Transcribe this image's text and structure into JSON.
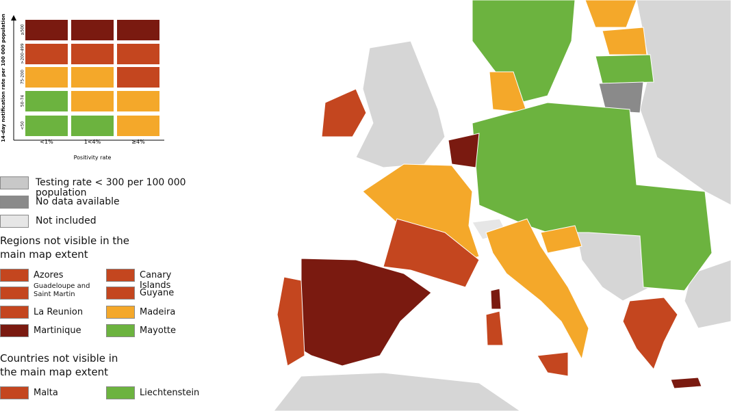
{
  "matrix": {
    "y_axis_label": "14-day notification rate per 100 000 population",
    "x_axis_label": "Positivity rate",
    "row_labels": [
      "≥500",
      ">200-499",
      "75-200",
      "50-74",
      "<50"
    ],
    "column_labels": [
      "<1%",
      "1<4%",
      "≥4%"
    ],
    "cells": [
      [
        "#7a1a10",
        "#7a1a10",
        "#7a1a10"
      ],
      [
        "#c4461f",
        "#c4461f",
        "#c4461f"
      ],
      [
        "#f4a82a",
        "#f4a82a",
        "#c4461f"
      ],
      [
        "#6cb33f",
        "#f4a82a",
        "#f4a82a"
      ],
      [
        "#6cb33f",
        "#6cb33f",
        "#f4a82a"
      ]
    ]
  },
  "legend": {
    "items": [
      {
        "label": "Testing rate < 300 per 100 000 population",
        "color": "#c8c8c8"
      },
      {
        "label": "No data available",
        "color": "#8a8a8a"
      },
      {
        "label": "Not included",
        "color": "#e6e6e6"
      }
    ]
  },
  "regions": {
    "heading": "Regions not visible in the main map extent",
    "items": [
      {
        "label": "Azores",
        "color": "#c4461f"
      },
      {
        "label": "Canary Islands",
        "color": "#c4461f"
      },
      {
        "label": "Guadeloupe and Saint Martin",
        "color": "#c4461f"
      },
      {
        "label": "Guyane",
        "color": "#c4461f"
      },
      {
        "label": "La Reunion",
        "color": "#c4461f"
      },
      {
        "label": "Madeira",
        "color": "#f4a82a"
      },
      {
        "label": "Martinique",
        "color": "#7a1a10"
      },
      {
        "label": "Mayotte",
        "color": "#6cb33f"
      }
    ]
  },
  "countries": {
    "heading": "Countries not visible in the main map extent",
    "items": [
      {
        "label": "Malta",
        "color": "#c4461f"
      },
      {
        "label": "Liechtenstein",
        "color": "#6cb33f"
      }
    ]
  }
}
